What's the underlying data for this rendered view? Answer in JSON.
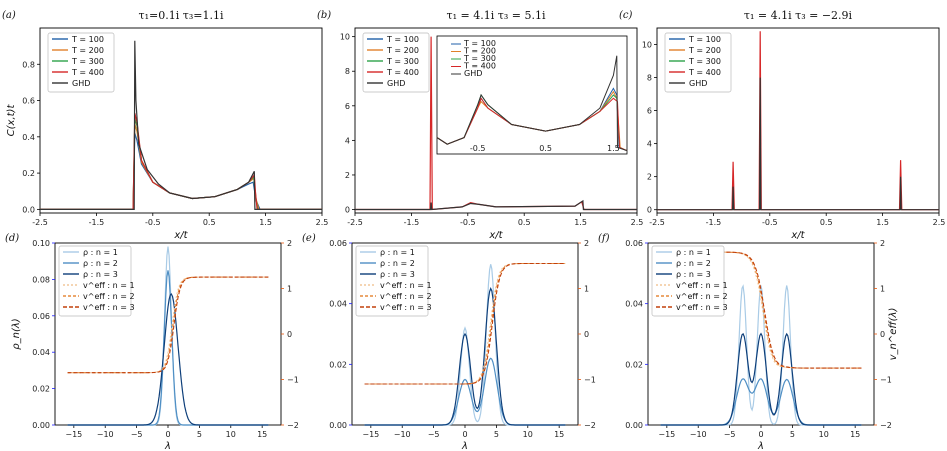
{
  "colors": {
    "T100": "#1f5fa8",
    "T200": "#e0802a",
    "T300": "#2ea34a",
    "T400": "#d62728",
    "GHD": "#333333",
    "rho1": "#a9cbe6",
    "rho2": "#4f8fc4",
    "rho3": "#0e3f7a",
    "v1": "#f2c79a",
    "v2": "#e58a3c",
    "v3": "#c2410c",
    "leftAxis": "#1a1aff",
    "rightAxis": "#e8590c"
  },
  "chart_data": [
    {
      "id": "a",
      "type": "line",
      "panel_label": "(a)",
      "title": "τ₁=0.1i  τ₃=1.1i",
      "xlabel": "x/t",
      "ylabel": "C(x,t)t",
      "xlim": [
        -2.5,
        2.5
      ],
      "ylim": [
        -0.02,
        1.0
      ],
      "xticks": [
        "-2.5",
        "-1.5",
        "-0.5",
        "0.5",
        "1.5",
        "2.5"
      ],
      "yticks": [
        "0.0",
        "0.2",
        "0.4",
        "0.6",
        "0.8"
      ],
      "legend": [
        "T = 100",
        "T = 200",
        "T = 300",
        "T = 400",
        "GHD"
      ],
      "series": [
        {
          "name": "T = 100",
          "x": [
            -2.5,
            -0.85,
            -0.82,
            -0.78,
            -0.7,
            -0.5,
            -0.2,
            0.2,
            0.6,
            1.0,
            1.2,
            1.28,
            1.33,
            1.4,
            2.5
          ],
          "y": [
            0,
            0,
            0.42,
            0.38,
            0.25,
            0.15,
            0.09,
            0.06,
            0.07,
            0.11,
            0.14,
            0.15,
            0.05,
            0,
            0
          ]
        },
        {
          "name": "T = 200",
          "x": [
            -2.5,
            -0.85,
            -0.82,
            -0.78,
            -0.7,
            -0.5,
            -0.2,
            0.2,
            0.6,
            1.0,
            1.2,
            1.29,
            1.33,
            1.38,
            2.5
          ],
          "y": [
            0,
            0,
            0.47,
            0.43,
            0.26,
            0.15,
            0.09,
            0.06,
            0.07,
            0.11,
            0.15,
            0.17,
            0.06,
            0,
            0
          ]
        },
        {
          "name": "T = 300",
          "x": [
            -2.5,
            -0.85,
            -0.82,
            -0.78,
            -0.7,
            -0.5,
            -0.2,
            0.2,
            0.6,
            1.0,
            1.2,
            1.29,
            1.32,
            1.36,
            2.5
          ],
          "y": [
            0,
            0,
            0.5,
            0.46,
            0.27,
            0.15,
            0.09,
            0.06,
            0.07,
            0.11,
            0.15,
            0.18,
            0.08,
            0,
            0
          ]
        },
        {
          "name": "T = 400",
          "x": [
            -2.5,
            -0.85,
            -0.82,
            -0.78,
            -0.7,
            -0.5,
            -0.2,
            0.2,
            0.6,
            1.0,
            1.2,
            1.3,
            1.32,
            1.35,
            2.5
          ],
          "y": [
            0,
            0,
            0.53,
            0.48,
            0.27,
            0.15,
            0.09,
            0.06,
            0.07,
            0.11,
            0.15,
            0.19,
            0.1,
            0,
            0
          ]
        },
        {
          "name": "GHD",
          "x": [
            -2.5,
            -0.83,
            -0.82,
            -0.8,
            -0.75,
            -0.6,
            -0.4,
            -0.2,
            0.2,
            0.6,
            1.0,
            1.2,
            1.3,
            1.31,
            2.5
          ],
          "y": [
            0,
            0,
            0.93,
            0.6,
            0.36,
            0.22,
            0.14,
            0.09,
            0.06,
            0.07,
            0.11,
            0.15,
            0.21,
            0,
            0
          ]
        }
      ]
    },
    {
      "id": "b",
      "type": "line",
      "panel_label": "(b)",
      "title": "τ₁ = 4.1i  τ₃ = 5.1i",
      "xlabel": "x/t",
      "ylabel": "",
      "xlim": [
        -2.5,
        2.5
      ],
      "ylim": [
        -0.2,
        10.5
      ],
      "xticks": [
        "-2.5",
        "-1.5",
        "-0.5",
        "0.5",
        "1.5",
        "2.5"
      ],
      "yticks": [
        "0",
        "2",
        "4",
        "6",
        "8",
        "10"
      ],
      "legend": [
        "T = 100",
        "T = 200",
        "T = 300",
        "T = 400",
        "GHD"
      ],
      "series": [
        {
          "name": "T = 400",
          "x": [
            -2.5,
            -1.17,
            -1.15,
            -1.13,
            -0.6,
            -0.45,
            -0.3,
            0.0,
            1.4,
            1.52,
            1.56,
            2.5
          ],
          "y": [
            0,
            0,
            10.0,
            0,
            0.15,
            0.4,
            0.3,
            0.15,
            0.2,
            0.45,
            0,
            0
          ]
        },
        {
          "name": "GHD",
          "x": [
            -2.5,
            -1.16,
            -1.15,
            -1.14,
            -0.6,
            -0.45,
            -0.3,
            0.0,
            1.4,
            1.54,
            1.55,
            2.5
          ],
          "y": [
            0,
            0,
            0.4,
            0,
            0.15,
            0.35,
            0.3,
            0.15,
            0.2,
            0.5,
            0,
            0
          ]
        }
      ],
      "inset": {
        "xlim": [
          -1.1,
          1.7
        ],
        "ylim": [
          0,
          0.36
        ],
        "xticks": [
          "-0.5",
          "0.5",
          "1.5"
        ],
        "legend": [
          "T = 100",
          "T = 200",
          "T = 300",
          "T = 400",
          "GHD"
        ],
        "series": [
          {
            "name": "T = 100",
            "x": [
              -1.1,
              -0.95,
              -0.7,
              -0.5,
              -0.45,
              -0.35,
              0.0,
              0.5,
              1.0,
              1.3,
              1.5,
              1.55,
              1.58,
              1.7
            ],
            "y": [
              0.05,
              0.03,
              0.05,
              0.14,
              0.17,
              0.14,
              0.09,
              0.07,
              0.09,
              0.13,
              0.2,
              0.18,
              0.02,
              0.01
            ]
          },
          {
            "name": "T = 200",
            "x": [
              -1.1,
              -0.95,
              -0.7,
              -0.5,
              -0.45,
              -0.35,
              0.0,
              0.5,
              1.0,
              1.3,
              1.5,
              1.55,
              1.6,
              1.7
            ],
            "y": [
              0.05,
              0.03,
              0.05,
              0.14,
              0.16,
              0.14,
              0.09,
              0.07,
              0.09,
              0.13,
              0.19,
              0.17,
              0.02,
              0.01
            ]
          },
          {
            "name": "T = 300",
            "x": [
              -1.1,
              -0.95,
              -0.7,
              -0.5,
              -0.45,
              -0.35,
              0.0,
              0.5,
              1.0,
              1.3,
              1.5,
              1.55,
              1.59,
              1.7
            ],
            "y": [
              0.05,
              0.03,
              0.05,
              0.15,
              0.18,
              0.15,
              0.09,
              0.07,
              0.09,
              0.13,
              0.18,
              0.17,
              0.02,
              0.01
            ]
          },
          {
            "name": "T = 400",
            "x": [
              -1.1,
              -0.95,
              -0.7,
              -0.5,
              -0.45,
              -0.35,
              0.0,
              0.5,
              1.0,
              1.3,
              1.5,
              1.56,
              1.59,
              1.7
            ],
            "y": [
              0.05,
              0.03,
              0.05,
              0.14,
              0.17,
              0.14,
              0.09,
              0.07,
              0.09,
              0.13,
              0.17,
              0.16,
              0.02,
              0.01
            ]
          },
          {
            "name": "GHD",
            "x": [
              -1.1,
              -0.95,
              -0.7,
              -0.5,
              -0.45,
              -0.35,
              0.0,
              0.5,
              1.0,
              1.3,
              1.5,
              1.55,
              1.56,
              1.7
            ],
            "y": [
              0.05,
              0.03,
              0.05,
              0.15,
              0.18,
              0.15,
              0.09,
              0.07,
              0.09,
              0.14,
              0.24,
              0.3,
              0.02,
              0.01
            ]
          }
        ]
      }
    },
    {
      "id": "c",
      "type": "line",
      "panel_label": "(c)",
      "title": "τ₁ = 4.1i  τ₃ = −2.9i",
      "xlabel": "x/t",
      "ylabel": "",
      "xlim": [
        -2.5,
        2.5
      ],
      "ylim": [
        -0.2,
        11.0
      ],
      "xticks": [
        "-2.5",
        "-1.5",
        "-0.5",
        "0.5",
        "1.5",
        "2.5"
      ],
      "yticks": [
        "0",
        "2",
        "4",
        "6",
        "8",
        "10"
      ],
      "legend": [
        "T = 100",
        "T = 200",
        "T = 300",
        "T = 400",
        "GHD"
      ],
      "series": [
        {
          "name": "T = 400",
          "x": [
            -2.5,
            -1.17,
            -1.15,
            -1.13,
            -0.69,
            -0.67,
            -0.65,
            1.8,
            1.82,
            1.84,
            2.5
          ],
          "y": [
            0,
            0,
            2.9,
            0,
            0,
            10.8,
            0,
            0,
            3.0,
            0,
            0
          ]
        },
        {
          "name": "GHD",
          "x": [
            -2.5,
            -1.16,
            -1.15,
            -1.14,
            -0.68,
            -0.67,
            -0.66,
            1.81,
            1.82,
            1.83,
            2.5
          ],
          "y": [
            0,
            0,
            1.4,
            0,
            0,
            8.0,
            0,
            0,
            2.0,
            0,
            0
          ]
        }
      ]
    },
    {
      "id": "d",
      "type": "line",
      "panel_label": "(d)",
      "xlabel": "λ",
      "ylabel": "ρ_n(λ)",
      "xlim": [
        -18,
        18
      ],
      "ylim": [
        0,
        0.1
      ],
      "y2lim": [
        -2,
        2
      ],
      "xticks": [
        "−15",
        "−10",
        "−5",
        "0",
        "5",
        "10",
        "15"
      ],
      "yticks": [
        "0.00",
        "0.02",
        "0.04",
        "0.06",
        "0.08",
        "0.10"
      ],
      "y2ticks": [
        "−2",
        "−1",
        "0",
        "1",
        "2"
      ],
      "legend": [
        "ρ : n = 1",
        "ρ : n = 2",
        "ρ : n = 3",
        "v^eff : n = 1",
        "v^eff : n = 2",
        "v^eff : n = 3"
      ],
      "rho": [
        {
          "n": 1,
          "peaks": [
            [
              0,
              0.098,
              0.55
            ]
          ],
          "base": 0
        },
        {
          "n": 2,
          "peaks": [
            [
              0,
              0.085,
              0.6
            ]
          ],
          "base": 0
        },
        {
          "n": 3,
          "peaks": [
            [
              0.5,
              0.072,
              1.1
            ]
          ],
          "base": 0
        }
      ],
      "veff": {
        "plateau_left": -0.85,
        "plateau_right": 1.25,
        "step_center": 0.8,
        "step_width": 0.5
      }
    },
    {
      "id": "e",
      "type": "line",
      "panel_label": "(e)",
      "xlabel": "λ",
      "ylabel": "",
      "xlim": [
        -18,
        18
      ],
      "ylim": [
        0,
        0.06
      ],
      "y2lim": [
        -2,
        2
      ],
      "xticks": [
        "−15",
        "−10",
        "−5",
        "0",
        "5",
        "10",
        "15"
      ],
      "yticks": [
        "0.00",
        "0.02",
        "0.04",
        "0.06"
      ],
      "y2ticks": [
        "−2",
        "−1",
        "0",
        "1",
        "2"
      ],
      "legend": [
        "ρ : n = 1",
        "ρ : n = 2",
        "ρ : n = 3",
        "v^eff : n = 1",
        "v^eff : n = 2",
        "v^eff : n = 3"
      ],
      "rho": [
        {
          "n": 1,
          "peaks": [
            [
              0,
              0.032,
              0.7
            ],
            [
              4.1,
              0.053,
              0.7
            ]
          ]
        },
        {
          "n": 2,
          "peaks": [
            [
              0,
              0.015,
              1.0
            ],
            [
              4.1,
              0.022,
              1.0
            ]
          ]
        },
        {
          "n": 3,
          "peaks": [
            [
              0,
              0.03,
              0.9
            ],
            [
              4.1,
              0.045,
              0.9
            ]
          ]
        }
      ],
      "veff": {
        "plateau_left": -1.1,
        "plateau_right": 1.55,
        "step_center": 4.2,
        "step_width": 0.6
      }
    },
    {
      "id": "f",
      "type": "line",
      "panel_label": "(f)",
      "xlabel": "λ",
      "ylabel": "v_n^eff(λ)",
      "xlim": [
        -18,
        18
      ],
      "ylim": [
        0,
        0.06
      ],
      "y2lim": [
        -2,
        2
      ],
      "xticks": [
        "−15",
        "−10",
        "−5",
        "0",
        "5",
        "10",
        "15"
      ],
      "yticks": [
        "0.00",
        "0.02",
        "0.04",
        "0.06"
      ],
      "y2ticks": [
        "−2",
        "−1",
        "0",
        "1",
        "2"
      ],
      "legend": [
        "ρ : n = 1",
        "ρ : n = 2",
        "ρ : n = 3",
        "v^eff : n = 1",
        "v^eff : n = 2",
        "v^eff : n = 3"
      ],
      "rho": [
        {
          "n": 1,
          "peaks": [
            [
              -2.9,
              0.046,
              0.6
            ],
            [
              0,
              0.046,
              0.6
            ],
            [
              4.1,
              0.046,
              0.6
            ]
          ]
        },
        {
          "n": 2,
          "peaks": [
            [
              -2.9,
              0.015,
              1.0
            ],
            [
              0,
              0.015,
              1.0
            ],
            [
              4.1,
              0.015,
              1.0
            ]
          ]
        },
        {
          "n": 3,
          "peaks": [
            [
              -2.9,
              0.03,
              0.85
            ],
            [
              0,
              0.03,
              0.85
            ],
            [
              4.1,
              0.03,
              0.85
            ]
          ]
        }
      ],
      "veff": {
        "plateau_left": 1.8,
        "plateau_right": -0.75,
        "step_center": 0.5,
        "step_width": 0.8,
        "dip": -1.1
      }
    }
  ]
}
